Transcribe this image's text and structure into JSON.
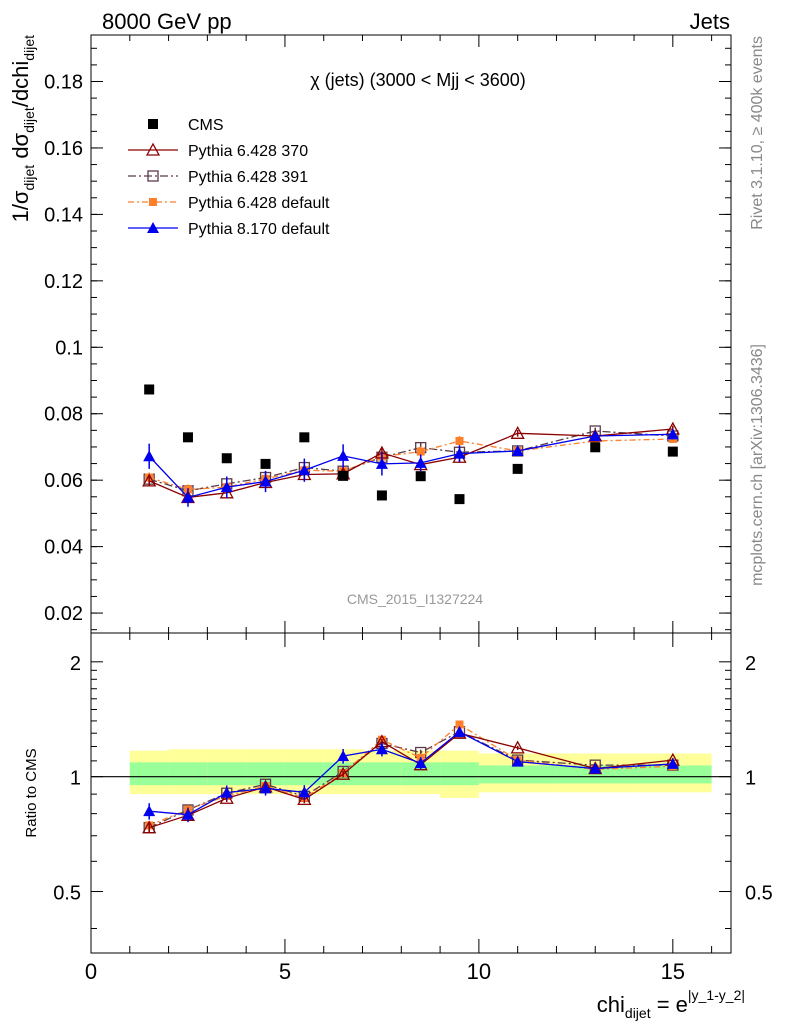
{
  "header": {
    "left": "8000 GeV pp",
    "right": "Jets"
  },
  "side_text": {
    "top": "Rivet 3.1.10, ≥ 400k events",
    "bottom": "mcplots.cern.ch [arXiv:1306.3436]"
  },
  "watermark": "CMS_2015_I1327224",
  "plot_title": "χ (jets) (3000 < Mjj < 3600)",
  "colors": {
    "cms": "#000000",
    "p370": "#8b0000",
    "p391": "#5a3a4a",
    "pdef": "#ff7f2a",
    "p8": "#0000ee",
    "band_inner": "#99ff99",
    "band_outer": "#ffff99"
  },
  "chart_data": [
    {
      "type": "scatter",
      "panel": "main",
      "ylabel_parts": {
        "a": "1/σ",
        "a_sub": "dijet",
        "b": " dσ",
        "b_sub": "dijet",
        "c": "/dchi",
        "c_sub": "dijet"
      },
      "xlim": [
        0,
        16.5
      ],
      "ylim": [
        0.014,
        0.194
      ],
      "yticks": [
        0.02,
        0.04,
        0.06,
        0.08,
        0.1,
        0.12,
        0.14,
        0.16,
        0.18
      ],
      "ytick_labels": [
        "0.02",
        "0.04",
        "0.06",
        "0.08",
        "0.1",
        "0.12",
        "0.14",
        "0.16",
        "0.18"
      ],
      "x": [
        1.5,
        2.5,
        3.5,
        4.5,
        5.5,
        6.5,
        7.5,
        8.5,
        9.5,
        11,
        13,
        15
      ],
      "legend": [
        {
          "key": "cms",
          "label": "CMS"
        },
        {
          "key": "p370",
          "label": "Pythia 6.428 370"
        },
        {
          "key": "p391",
          "label": "Pythia 6.428 391"
        },
        {
          "key": "pdef",
          "label": "Pythia 6.428 default"
        },
        {
          "key": "p8",
          "label": "Pythia 8.170 default"
        }
      ],
      "series": [
        {
          "key": "cms",
          "name": "CMS",
          "values": [
            0.0873,
            0.0729,
            0.0666,
            0.0649,
            0.0729,
            0.0613,
            0.0554,
            0.0612,
            0.0543,
            0.0634,
            0.0699,
            0.0686
          ]
        },
        {
          "key": "p370",
          "name": "Pythia 6.428 370",
          "values": [
            0.0598,
            0.0548,
            0.0562,
            0.0593,
            0.0617,
            0.0619,
            0.0682,
            0.0647,
            0.0669,
            0.0741,
            0.0733,
            0.0754
          ],
          "err": [
            0.0015,
            0.0015,
            0.0015,
            0.0015,
            0.0015,
            0.0015,
            0.0015,
            0.0015,
            0.0015,
            0.001,
            0.001,
            0.001
          ]
        },
        {
          "key": "p391",
          "name": "Pythia 6.428 391",
          "values": [
            0.0603,
            0.0568,
            0.0589,
            0.0608,
            0.0638,
            0.0627,
            0.0669,
            0.0698,
            0.0684,
            0.0688,
            0.0748,
            0.0733
          ],
          "err": [
            0.0015,
            0.0015,
            0.0015,
            0.0015,
            0.0015,
            0.0015,
            0.0015,
            0.0015,
            0.0015,
            0.001,
            0.001,
            0.001
          ]
        },
        {
          "key": "pdef",
          "name": "Pythia 6.428 default",
          "values": [
            0.0608,
            0.0572,
            0.0579,
            0.0604,
            0.063,
            0.0627,
            0.0671,
            0.0686,
            0.0718,
            0.0688,
            0.0718,
            0.0724
          ],
          "err": [
            0.0015,
            0.0015,
            0.0015,
            0.0015,
            0.0015,
            0.0015,
            0.0015,
            0.0015,
            0.0015,
            0.001,
            0.001,
            0.001
          ]
        },
        {
          "key": "p8",
          "name": "Pythia 8.170 default",
          "values": [
            0.0672,
            0.0548,
            0.0579,
            0.0596,
            0.063,
            0.0673,
            0.0649,
            0.0652,
            0.068,
            0.0688,
            0.0733,
            0.0738
          ],
          "err": [
            0.0038,
            0.0028,
            0.0032,
            0.0032,
            0.0035,
            0.0035,
            0.0035,
            0.0025,
            0.0025,
            0.0015,
            0.0015,
            0.0015
          ]
        }
      ]
    },
    {
      "type": "scatter",
      "panel": "ratio",
      "ylabel": "Ratio to CMS",
      "xlabel_parts": {
        "base": "chi",
        "sub": "dijet",
        "eq": " = e",
        "sup": "|y_1-y_2|"
      },
      "xlim": [
        0,
        16.5
      ],
      "ylim": [
        0.345,
        2.38
      ],
      "ylog": true,
      "yticks": [
        0.5,
        1,
        2
      ],
      "ytick_labels": [
        "0.5",
        "1",
        "2"
      ],
      "xticks": [
        0,
        5,
        10,
        15
      ],
      "xtick_labels": [
        "0",
        "5",
        "10",
        "15"
      ],
      "bands": [
        {
          "x0": 1,
          "x1": 2,
          "inner": [
            0.95,
            1.09
          ],
          "outer": [
            0.9,
            1.17
          ]
        },
        {
          "x0": 2,
          "x1": 3,
          "inner": [
            0.95,
            1.09
          ],
          "outer": [
            0.9,
            1.18
          ]
        },
        {
          "x0": 3,
          "x1": 4,
          "inner": [
            0.95,
            1.09
          ],
          "outer": [
            0.9,
            1.18
          ]
        },
        {
          "x0": 4,
          "x1": 5,
          "inner": [
            0.95,
            1.09
          ],
          "outer": [
            0.9,
            1.18
          ]
        },
        {
          "x0": 5,
          "x1": 6,
          "inner": [
            0.95,
            1.09
          ],
          "outer": [
            0.9,
            1.18
          ]
        },
        {
          "x0": 6,
          "x1": 7,
          "inner": [
            0.95,
            1.09
          ],
          "outer": [
            0.9,
            1.18
          ]
        },
        {
          "x0": 7,
          "x1": 8,
          "inner": [
            0.95,
            1.09
          ],
          "outer": [
            0.9,
            1.17
          ]
        },
        {
          "x0": 8,
          "x1": 9,
          "inner": [
            0.95,
            1.09
          ],
          "outer": [
            0.9,
            1.17
          ]
        },
        {
          "x0": 9,
          "x1": 10,
          "inner": [
            0.95,
            1.09
          ],
          "outer": [
            0.88,
            1.17
          ]
        },
        {
          "x0": 10,
          "x1": 12,
          "inner": [
            0.96,
            1.07
          ],
          "outer": [
            0.91,
            1.15
          ]
        },
        {
          "x0": 12,
          "x1": 14,
          "inner": [
            0.96,
            1.07
          ],
          "outer": [
            0.91,
            1.15
          ]
        },
        {
          "x0": 14,
          "x1": 16,
          "inner": [
            0.96,
            1.07
          ],
          "outer": [
            0.91,
            1.15
          ]
        }
      ],
      "reference_line": 1,
      "series": [
        {
          "key": "p370",
          "name": "Pythia 6.428 370",
          "values": [
            0.735,
            0.792,
            0.878,
            0.94,
            0.872,
            1.015,
            1.235,
            1.075,
            1.3,
            1.19,
            1.05,
            1.105
          ],
          "err": [
            0.02,
            0.02,
            0.02,
            0.02,
            0.02,
            0.02,
            0.02,
            0.02,
            0.02,
            0.015,
            0.015,
            0.015
          ]
        },
        {
          "key": "p391",
          "name": "Pythia 6.428 391",
          "values": [
            0.735,
            0.818,
            0.905,
            0.955,
            0.888,
            1.032,
            1.222,
            1.157,
            1.312,
            1.105,
            1.072,
            1.072
          ],
          "err": [
            0.02,
            0.02,
            0.02,
            0.02,
            0.02,
            0.02,
            0.02,
            0.02,
            0.02,
            0.015,
            0.015,
            0.015
          ]
        },
        {
          "key": "pdef",
          "name": "Pythia 6.428 default",
          "values": [
            0.745,
            0.82,
            0.89,
            0.945,
            0.88,
            1.022,
            1.25,
            1.12,
            1.37,
            1.105,
            1.045,
            1.065
          ],
          "err": [
            0.02,
            0.02,
            0.02,
            0.02,
            0.02,
            0.02,
            0.02,
            0.02,
            0.02,
            0.015,
            0.015,
            0.015
          ]
        },
        {
          "key": "p8",
          "name": "Pythia 8.170 default",
          "values": [
            0.812,
            0.795,
            0.908,
            0.932,
            0.91,
            1.132,
            1.18,
            1.085,
            1.31,
            1.095,
            1.05,
            1.08
          ],
          "err": [
            0.04,
            0.035,
            0.04,
            0.04,
            0.04,
            0.05,
            0.05,
            0.04,
            0.04,
            0.02,
            0.02,
            0.02
          ]
        }
      ]
    }
  ]
}
